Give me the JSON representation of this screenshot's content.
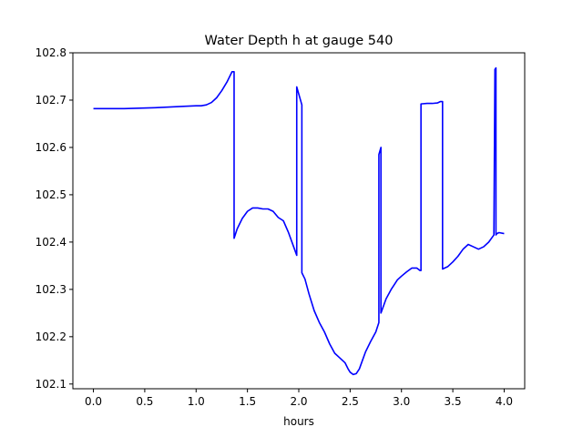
{
  "chart_data": {
    "type": "line",
    "title": "Water Depth h at gauge 540",
    "xlabel": "hours",
    "ylabel": "",
    "xlim": [
      -0.2,
      4.2
    ],
    "ylim": [
      102.09,
      102.8
    ],
    "xticks": [
      0.0,
      0.5,
      1.0,
      1.5,
      2.0,
      2.5,
      3.0,
      3.5,
      4.0
    ],
    "xtick_labels": [
      "0.0",
      "0.5",
      "1.0",
      "1.5",
      "2.0",
      "2.5",
      "3.0",
      "3.5",
      "4.0"
    ],
    "yticks": [
      102.1,
      102.2,
      102.3,
      102.4,
      102.5,
      102.6,
      102.7,
      102.8
    ],
    "ytick_labels": [
      "102.1",
      "102.2",
      "102.3",
      "102.4",
      "102.5",
      "102.6",
      "102.7",
      "102.8"
    ],
    "grid": false,
    "series": [
      {
        "color": "#0000ff",
        "x": [
          0.0,
          0.3,
          0.6,
          0.9,
          1.0,
          1.05,
          1.1,
          1.15,
          1.2,
          1.25,
          1.3,
          1.35,
          1.37,
          1.37,
          1.4,
          1.45,
          1.5,
          1.55,
          1.6,
          1.65,
          1.7,
          1.75,
          1.8,
          1.85,
          1.9,
          1.95,
          1.98,
          1.98,
          2.03,
          2.03,
          2.06,
          2.1,
          2.15,
          2.2,
          2.25,
          2.3,
          2.35,
          2.4,
          2.45,
          2.48,
          2.5,
          2.53,
          2.56,
          2.59,
          2.62,
          2.65,
          2.7,
          2.75,
          2.78,
          2.78,
          2.8,
          2.8,
          2.82,
          2.85,
          2.9,
          2.93,
          2.96,
          3.0,
          3.05,
          3.1,
          3.15,
          3.18,
          3.19,
          3.19,
          3.25,
          3.3,
          3.35,
          3.38,
          3.4,
          3.4,
          3.45,
          3.5,
          3.55,
          3.6,
          3.65,
          3.7,
          3.75,
          3.8,
          3.85,
          3.9,
          3.91,
          3.91,
          3.92,
          3.92,
          3.93,
          3.95,
          4.0
        ],
        "y": [
          102.682,
          102.682,
          102.684,
          102.687,
          102.688,
          102.688,
          102.69,
          102.695,
          102.705,
          102.72,
          102.738,
          102.76,
          102.76,
          102.408,
          102.428,
          102.45,
          102.465,
          102.472,
          102.472,
          102.47,
          102.47,
          102.465,
          102.452,
          102.445,
          102.42,
          102.39,
          102.372,
          102.728,
          102.69,
          102.335,
          102.322,
          102.29,
          102.255,
          102.23,
          102.21,
          102.185,
          102.165,
          102.155,
          102.145,
          102.132,
          102.125,
          102.12,
          102.122,
          102.132,
          102.15,
          102.168,
          102.19,
          102.21,
          102.23,
          102.585,
          102.6,
          102.25,
          102.262,
          102.28,
          102.3,
          102.31,
          102.32,
          102.328,
          102.337,
          102.345,
          102.345,
          102.34,
          102.34,
          102.692,
          102.693,
          102.693,
          102.694,
          102.697,
          102.697,
          102.343,
          102.348,
          102.358,
          102.37,
          102.385,
          102.395,
          102.39,
          102.385,
          102.39,
          102.4,
          102.415,
          102.765,
          102.765,
          102.768,
          102.415,
          102.418,
          102.42,
          102.418
        ]
      }
    ]
  }
}
